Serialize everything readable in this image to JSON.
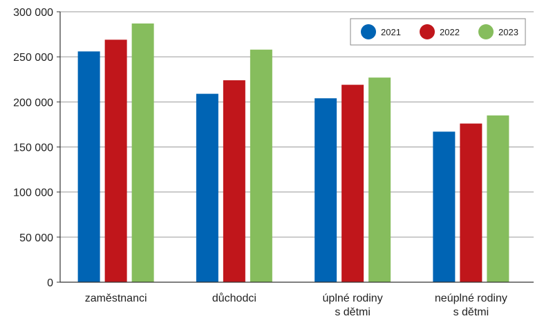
{
  "chart_data": {
    "type": "bar",
    "categories": [
      [
        "zaměstnanci"
      ],
      [
        "důchodci"
      ],
      [
        "úplné rodiny",
        "s dětmi"
      ],
      [
        "neúplné rodiny",
        "s dětmi"
      ]
    ],
    "series": [
      {
        "name": "2021",
        "color": "#0064b4",
        "values": [
          256000,
          209000,
          204000,
          167000
        ]
      },
      {
        "name": "2022",
        "color": "#c0161b",
        "values": [
          269000,
          224000,
          219000,
          176000
        ]
      },
      {
        "name": "2023",
        "color": "#86bd5d",
        "values": [
          287000,
          258000,
          227000,
          185000
        ]
      }
    ],
    "y_ticks": [
      "0",
      "50 000",
      "100 000",
      "150 000",
      "200 000",
      "250 000",
      "300 000"
    ],
    "ylim": [
      0,
      300000
    ],
    "ytick_step": 50000,
    "grid": true,
    "legend_position": "top-right",
    "title": "",
    "xlabel": "",
    "ylabel": ""
  }
}
